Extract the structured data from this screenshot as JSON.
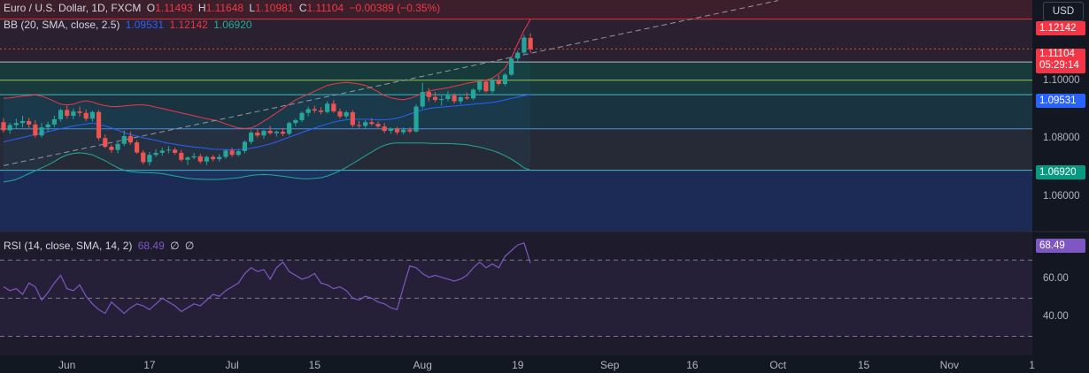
{
  "legend": {
    "symbol": "Euro / U.S. Dollar, 1D, FXCM",
    "open_label": "O",
    "open": "1.11493",
    "high_label": "H",
    "high": "1.11648",
    "low_label": "L",
    "low": "1.10981",
    "close_label": "C",
    "close": "1.11104",
    "change": "−0.00389 (−0.35%)",
    "bb_label": "BB (20, SMA, close, 2.5)",
    "bb_basis": "1.09531",
    "bb_upper": "1.12142",
    "bb_lower": "1.06920",
    "rsi_label": "RSI (14, close, SMA, 14, 2)",
    "rsi_value": "68.49",
    "rsi_extra1": "∅",
    "rsi_extra2": "∅"
  },
  "currency_button": "USD",
  "price_tags": {
    "upper": "1.12142",
    "last": "1.11104",
    "countdown": "05:29:14",
    "basis": "1.09531",
    "lower": "1.06920",
    "rsi": "68.49"
  },
  "colors": {
    "background": "#131722",
    "up": "#26a69a",
    "down": "#ef5350",
    "bb_upper": "#f23645",
    "bb_basis": "#2962ff",
    "bb_lower": "#22ab94",
    "rsi_line": "#7e57c2",
    "zone_red": "#3d1f2b",
    "zone_green": "#163b3a",
    "zone_teal": "#1a3341",
    "zone_gray": "#262a36",
    "zone_blue": "#1c2b55"
  },
  "chart_data": {
    "type": "candlestick",
    "price_axis": {
      "ticks": [
        "1.06000",
        "1.08000",
        "1.10000"
      ],
      "range": [
        1.048,
        1.128
      ]
    },
    "rsi_axis": {
      "ticks": [
        "40.00",
        "60.00"
      ],
      "range": [
        20,
        85
      ],
      "levels": [
        30,
        50,
        70
      ]
    },
    "time_axis": {
      "ticks": [
        "Jun",
        "17",
        "Jul",
        "15",
        "Aug",
        "19",
        "Sep",
        "16",
        "Oct",
        "15",
        "Nov",
        "1"
      ]
    },
    "horizontal_levels": [
      1.1214,
      1.1111,
      1.1066,
      1.1003,
      1.0953,
      1.0835,
      1.0692
    ],
    "trendline": {
      "from": [
        0,
        1.0708
      ],
      "to": [
        122,
        1.1278
      ]
    },
    "candles": [
      [
        1.0858,
        1.0872,
        1.0822,
        1.083
      ],
      [
        1.083,
        1.0856,
        1.0818,
        1.0848
      ],
      [
        1.0848,
        1.087,
        1.0835,
        1.0855
      ],
      [
        1.0855,
        1.088,
        1.084,
        1.0862
      ],
      [
        1.0862,
        1.0873,
        1.0838,
        1.085
      ],
      [
        1.085,
        1.0865,
        1.0805,
        1.0812
      ],
      [
        1.0812,
        1.0855,
        1.0805,
        1.084
      ],
      [
        1.084,
        1.086,
        1.0825,
        1.085
      ],
      [
        1.085,
        1.088,
        1.084,
        1.0868
      ],
      [
        1.0868,
        1.0905,
        1.086,
        1.09
      ],
      [
        1.09,
        1.0915,
        1.087,
        1.088
      ],
      [
        1.088,
        1.0905,
        1.0868,
        1.0895
      ],
      [
        1.0895,
        1.0912,
        1.0878,
        1.089
      ],
      [
        1.089,
        1.0903,
        1.0862,
        1.087
      ],
      [
        1.087,
        1.0898,
        1.086,
        1.0893
      ],
      [
        1.0893,
        1.09,
        1.0795,
        1.0803
      ],
      [
        1.0803,
        1.0815,
        1.0768,
        1.0773
      ],
      [
        1.0773,
        1.078,
        1.0752,
        1.0762
      ],
      [
        1.0762,
        1.079,
        1.075,
        1.0783
      ],
      [
        1.0783,
        1.083,
        1.0775,
        1.081
      ],
      [
        1.081,
        1.0825,
        1.078,
        1.0788
      ],
      [
        1.0788,
        1.0795,
        1.0748,
        1.0753
      ],
      [
        1.0753,
        1.0762,
        1.0712,
        1.072
      ],
      [
        1.072,
        1.0755,
        1.0708,
        1.0745
      ],
      [
        1.0745,
        1.0765,
        1.0738,
        1.0752
      ],
      [
        1.0752,
        1.077,
        1.0742,
        1.076
      ],
      [
        1.076,
        1.0775,
        1.075,
        1.0763
      ],
      [
        1.0763,
        1.077,
        1.0745,
        1.0752
      ],
      [
        1.0752,
        1.0762,
        1.0722,
        1.0728
      ],
      [
        1.0728,
        1.074,
        1.071,
        1.0736
      ],
      [
        1.0736,
        1.0752,
        1.073,
        1.074
      ],
      [
        1.074,
        1.0748,
        1.0715,
        1.0722
      ],
      [
        1.0722,
        1.0742,
        1.071,
        1.0738
      ],
      [
        1.0738,
        1.0745,
        1.0722,
        1.073
      ],
      [
        1.073,
        1.0748,
        1.0722,
        1.0738
      ],
      [
        1.0738,
        1.0765,
        1.0732,
        1.076
      ],
      [
        1.076,
        1.077,
        1.0738,
        1.0745
      ],
      [
        1.0745,
        1.0765,
        1.074,
        1.0758
      ],
      [
        1.0758,
        1.0795,
        1.075,
        1.079
      ],
      [
        1.079,
        1.083,
        1.0782,
        1.0822
      ],
      [
        1.0822,
        1.0835,
        1.0805,
        1.0812
      ],
      [
        1.0812,
        1.0832,
        1.08,
        1.0828
      ],
      [
        1.0828,
        1.0845,
        1.0815,
        1.082
      ],
      [
        1.082,
        1.083,
        1.0808,
        1.0825
      ],
      [
        1.0825,
        1.0838,
        1.081,
        1.0818
      ],
      [
        1.0818,
        1.086,
        1.0812,
        1.0855
      ],
      [
        1.0855,
        1.087,
        1.0845,
        1.0865
      ],
      [
        1.0865,
        1.0895,
        1.0858,
        1.089
      ],
      [
        1.089,
        1.0912,
        1.0878,
        1.0903
      ],
      [
        1.0903,
        1.0915,
        1.089,
        1.0898
      ],
      [
        1.0898,
        1.091,
        1.0885,
        1.0893
      ],
      [
        1.0893,
        1.093,
        1.0888,
        1.0922
      ],
      [
        1.0922,
        1.0935,
        1.089,
        1.0895
      ],
      [
        1.0895,
        1.0905,
        1.087,
        1.0878
      ],
      [
        1.0878,
        1.0898,
        1.087,
        1.0892
      ],
      [
        1.0892,
        1.09,
        1.084,
        1.0848
      ],
      [
        1.0848,
        1.0862,
        1.0838,
        1.0845
      ],
      [
        1.0845,
        1.0865,
        1.0838,
        1.0858
      ],
      [
        1.0858,
        1.0872,
        1.0846,
        1.0852
      ],
      [
        1.0852,
        1.086,
        1.0838,
        1.0843
      ],
      [
        1.0843,
        1.0855,
        1.082,
        1.0828
      ],
      [
        1.0828,
        1.084,
        1.0818,
        1.0835
      ],
      [
        1.0835,
        1.0842,
        1.0815,
        1.0823
      ],
      [
        1.0823,
        1.084,
        1.0815,
        1.0832
      ],
      [
        1.0832,
        1.084,
        1.082,
        1.0826
      ],
      [
        1.0826,
        1.092,
        1.0822,
        1.0912
      ],
      [
        1.0912,
        1.0995,
        1.0905,
        1.0962
      ],
      [
        1.0962,
        1.0975,
        1.093,
        1.0945
      ],
      [
        1.0945,
        1.0962,
        1.0928,
        1.0935
      ],
      [
        1.0935,
        1.095,
        1.0915,
        1.0938
      ],
      [
        1.0938,
        1.0965,
        1.093,
        1.095
      ],
      [
        1.095,
        1.0958,
        1.0922,
        1.093
      ],
      [
        1.093,
        1.0948,
        1.092,
        1.0944
      ],
      [
        1.0944,
        1.096,
        1.0935,
        1.094
      ],
      [
        1.094,
        1.0975,
        1.0935,
        1.097
      ],
      [
        1.097,
        1.1005,
        1.0962,
        1.0998
      ],
      [
        1.0998,
        1.1005,
        1.096,
        1.0965
      ],
      [
        1.0965,
        1.101,
        1.0958,
        1.1003
      ],
      [
        1.1003,
        1.102,
        1.0985,
        1.099
      ],
      [
        1.099,
        1.1028,
        1.0983,
        1.1022
      ],
      [
        1.1022,
        1.1085,
        1.1018,
        1.1078
      ],
      [
        1.1078,
        1.1105,
        1.1068,
        1.1098
      ],
      [
        1.1098,
        1.116,
        1.109,
        1.115
      ],
      [
        1.1149,
        1.1165,
        1.1098,
        1.111
      ]
    ],
    "bb_upper": [
      1.094,
      1.0942,
      1.0945,
      1.0948,
      1.095,
      1.0952,
      1.0948,
      1.094,
      1.093,
      1.092,
      1.0918,
      1.092,
      1.0928,
      1.0932,
      1.0928,
      1.092,
      1.0915,
      1.0912,
      1.0912,
      1.0914,
      1.0916,
      1.0918,
      1.0918,
      1.0915,
      1.091,
      1.0905,
      1.09,
      1.0895,
      1.089,
      1.0885,
      1.088,
      1.0875,
      1.087,
      1.0866,
      1.086,
      1.0852,
      1.0845,
      1.0838,
      1.0836,
      1.0838,
      1.0848,
      1.0862,
      1.0875,
      1.089,
      1.0905,
      1.092,
      1.0935,
      1.0945,
      1.0955,
      1.0965,
      1.0975,
      1.0985,
      1.099,
      1.0993,
      1.0995,
      1.0993,
      1.099,
      1.0985,
      1.0975,
      1.0963,
      1.095,
      1.0942,
      1.0938,
      1.0936,
      1.094,
      1.0948,
      1.0958,
      1.0965,
      1.097,
      1.0973,
      1.0977,
      1.0982,
      1.0987,
      1.0992,
      1.0996,
      1.0999,
      1.1003,
      1.101,
      1.1025,
      1.1045,
      1.108,
      1.113,
      1.1175,
      1.1214
    ],
    "bb_basis": [
      1.079,
      1.0795,
      1.08,
      1.0805,
      1.081,
      1.0815,
      1.082,
      1.0825,
      1.083,
      1.0835,
      1.084,
      1.0845,
      1.0848,
      1.0852,
      1.0855,
      1.085,
      1.0845,
      1.0838,
      1.083,
      1.0822,
      1.0815,
      1.081,
      1.0804,
      1.08,
      1.0795,
      1.079,
      1.0785,
      1.0782,
      1.0778,
      1.0775,
      1.0772,
      1.077,
      1.0768,
      1.0765,
      1.0764,
      1.0763,
      1.0762,
      1.0763,
      1.0765,
      1.0768,
      1.0772,
      1.0777,
      1.0783,
      1.079,
      1.0798,
      1.0806,
      1.0814,
      1.0822,
      1.083,
      1.0838,
      1.0845,
      1.0852,
      1.0858,
      1.0863,
      1.0866,
      1.0868,
      1.0868,
      1.0868,
      1.0867,
      1.0866,
      1.0866,
      1.0868,
      1.0872,
      1.0878,
      1.0886,
      1.0894,
      1.09,
      1.0905,
      1.0908,
      1.091,
      1.0912,
      1.0914,
      1.0916,
      1.0918,
      1.092,
      1.0922,
      1.0924,
      1.0926,
      1.093,
      1.0935,
      1.094,
      1.0945,
      1.095,
      1.0953
    ],
    "bb_lower": [
      1.0652,
      1.0655,
      1.066,
      1.067,
      1.068,
      1.069,
      1.07,
      1.071,
      1.0722,
      1.0735,
      1.0745,
      1.075,
      1.0752,
      1.075,
      1.0745,
      1.0735,
      1.0725,
      1.0712,
      1.07,
      1.0692,
      1.0687,
      1.0685,
      1.0684,
      1.0683,
      1.0682,
      1.068,
      1.0676,
      1.0672,
      1.0668,
      1.0664,
      1.0662,
      1.0661,
      1.066,
      1.066,
      1.066,
      1.0662,
      1.0664,
      1.0666,
      1.067,
      1.0674,
      1.0676,
      1.0677,
      1.0676,
      1.0674,
      1.0671,
      1.0668,
      1.0665,
      1.0663,
      1.0662,
      1.0664,
      1.0666,
      1.0672,
      1.068,
      1.069,
      1.0702,
      1.0715,
      1.0728,
      1.0742,
      1.0755,
      1.0768,
      1.0778,
      1.0784,
      1.0786,
      1.0786,
      1.0786,
      1.0786,
      1.0786,
      1.0785,
      1.0784,
      1.0784,
      1.0784,
      1.0783,
      1.0782,
      1.078,
      1.0776,
      1.0772,
      1.0766,
      1.076,
      1.0752,
      1.0742,
      1.073,
      1.0716,
      1.07,
      1.0692
    ],
    "rsi": [
      56,
      54,
      55,
      52,
      58,
      56,
      49,
      53,
      58,
      62,
      55,
      54,
      57,
      51,
      47,
      44,
      42,
      48,
      45,
      42,
      45,
      47,
      46,
      44,
      47,
      50,
      48,
      46,
      43,
      45,
      47,
      46,
      49,
      52,
      51,
      54,
      56,
      58,
      63,
      66,
      64,
      65,
      60,
      66,
      69,
      64,
      62,
      60,
      61,
      63,
      58,
      57,
      55,
      56,
      54,
      50,
      49,
      51,
      50,
      48,
      47,
      45,
      44,
      56,
      67,
      66,
      63,
      61,
      62,
      61,
      60,
      59,
      60,
      62,
      66,
      69,
      66,
      68,
      66,
      72,
      75,
      78,
      79,
      68.49
    ]
  }
}
